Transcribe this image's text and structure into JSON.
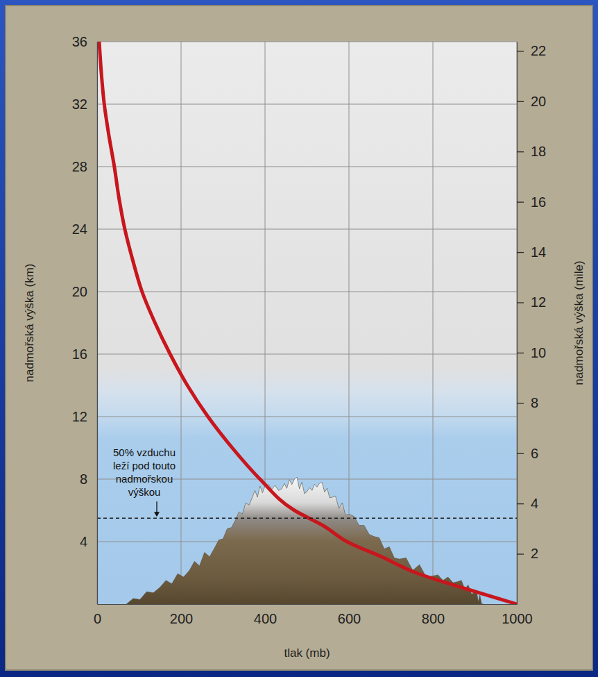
{
  "chart_data": {
    "type": "line",
    "x_label": "tlak (mb)",
    "y_label": "nadmořská výška (km)",
    "y2_label": "nadmořská výška (mile)",
    "x": [
      5,
      10,
      17,
      28,
      41,
      52,
      66,
      85,
      107,
      138,
      174,
      215,
      264,
      322,
      388,
      470,
      540,
      595,
      680,
      760,
      876,
      1000
    ],
    "series": [
      {
        "color": "#c8161d",
        "values": [
          36,
          34,
          32,
          30,
          28,
          26,
          24,
          22,
          20,
          18,
          16,
          14,
          12,
          10,
          8,
          6,
          5,
          4,
          3,
          2,
          1,
          0
        ]
      }
    ],
    "xlim": [
      0,
      1000
    ],
    "xticks": [
      0,
      200,
      400,
      600,
      800,
      1000
    ],
    "ylim": [
      0,
      36
    ],
    "yticks": [
      4,
      8,
      12,
      16,
      20,
      24,
      28,
      32,
      36
    ],
    "y2lim": [
      0,
      22.37
    ],
    "y2ticks": [
      2,
      4,
      6,
      8,
      10,
      12,
      14,
      16,
      18,
      20,
      22
    ],
    "grid": true,
    "annotations": [
      {
        "text": "50% vzduchu leží pod touto nadmořskou výškou",
        "y": 5.5
      }
    ]
  }
}
